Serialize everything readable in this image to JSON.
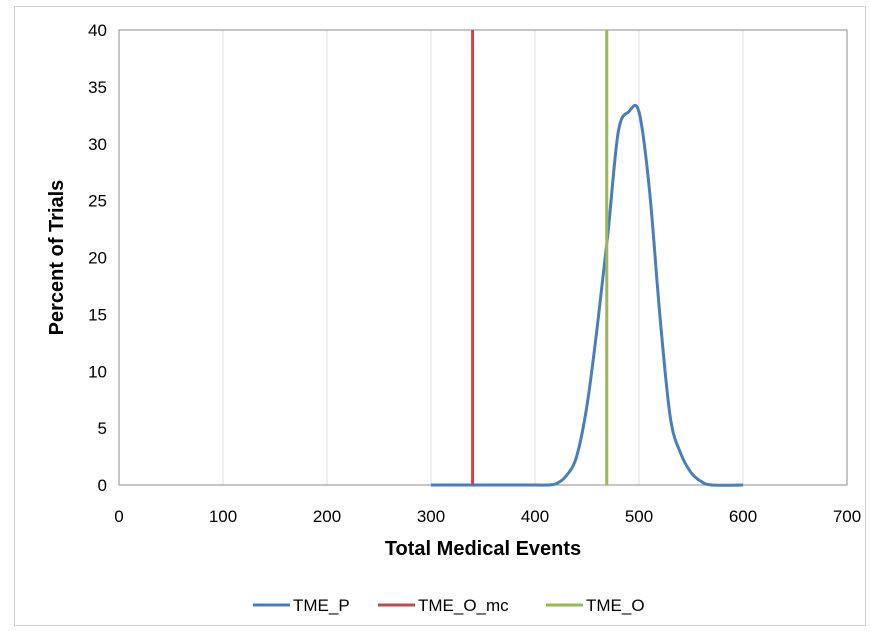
{
  "chart_data": {
    "type": "line",
    "xlabel": "Total Medical Events",
    "ylabel": "Percent of Trials",
    "xlim": [
      0,
      700
    ],
    "ylim": [
      0,
      40
    ],
    "x_ticks": [
      0,
      100,
      200,
      300,
      400,
      500,
      600,
      700
    ],
    "y_ticks": [
      0,
      5,
      10,
      15,
      20,
      25,
      30,
      35,
      40
    ],
    "grid": "vertical",
    "legend_position": "bottom",
    "series": [
      {
        "name": "TME_P",
        "color": "#4a7ebb",
        "x": [
          300,
          340,
          400,
          410,
          420,
          430,
          440,
          450,
          460,
          470,
          480,
          490,
          500,
          510,
          520,
          530,
          540,
          550,
          560,
          570,
          600
        ],
        "values": [
          0,
          0,
          0,
          0,
          0.1,
          0.8,
          2.5,
          7,
          14,
          22,
          31,
          32.8,
          32.8,
          26,
          15,
          6,
          2.8,
          1.1,
          0.3,
          0,
          0
        ]
      },
      {
        "name": "TME_O_mc",
        "color": "#be4b48",
        "x": [
          340,
          340
        ],
        "values": [
          0,
          40
        ]
      },
      {
        "name": "TME_O",
        "color": "#98b954",
        "x": [
          469,
          469
        ],
        "values": [
          0,
          40
        ]
      }
    ]
  }
}
